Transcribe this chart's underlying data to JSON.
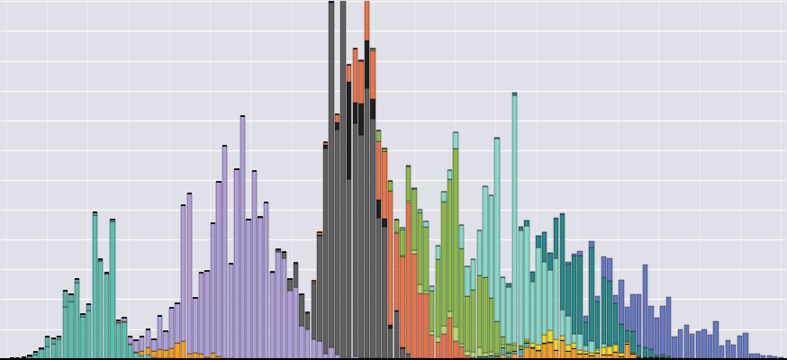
{
  "background_color": "#e0e0e8",
  "n_bars": 132,
  "ylim": [
    0,
    1050
  ],
  "bar_width": 0.82,
  "colors": {
    "teal": "#5bbfb0",
    "purple": "#b09fd8",
    "dark_gray": "#606060",
    "orange_red": "#e8734a",
    "yellow_green": "#8ab84a",
    "light_teal": "#88d8c8",
    "teal2": "#5ab0a8",
    "dark_teal": "#2a8888",
    "blue_slate": "#6878c0",
    "orange": "#f5a020",
    "yellow": "#f5d820",
    "light_green": "#b8d870",
    "small_gray": "#404040",
    "near_black": "#202020",
    "lavender": "#c8b8f0"
  },
  "seed": 17
}
